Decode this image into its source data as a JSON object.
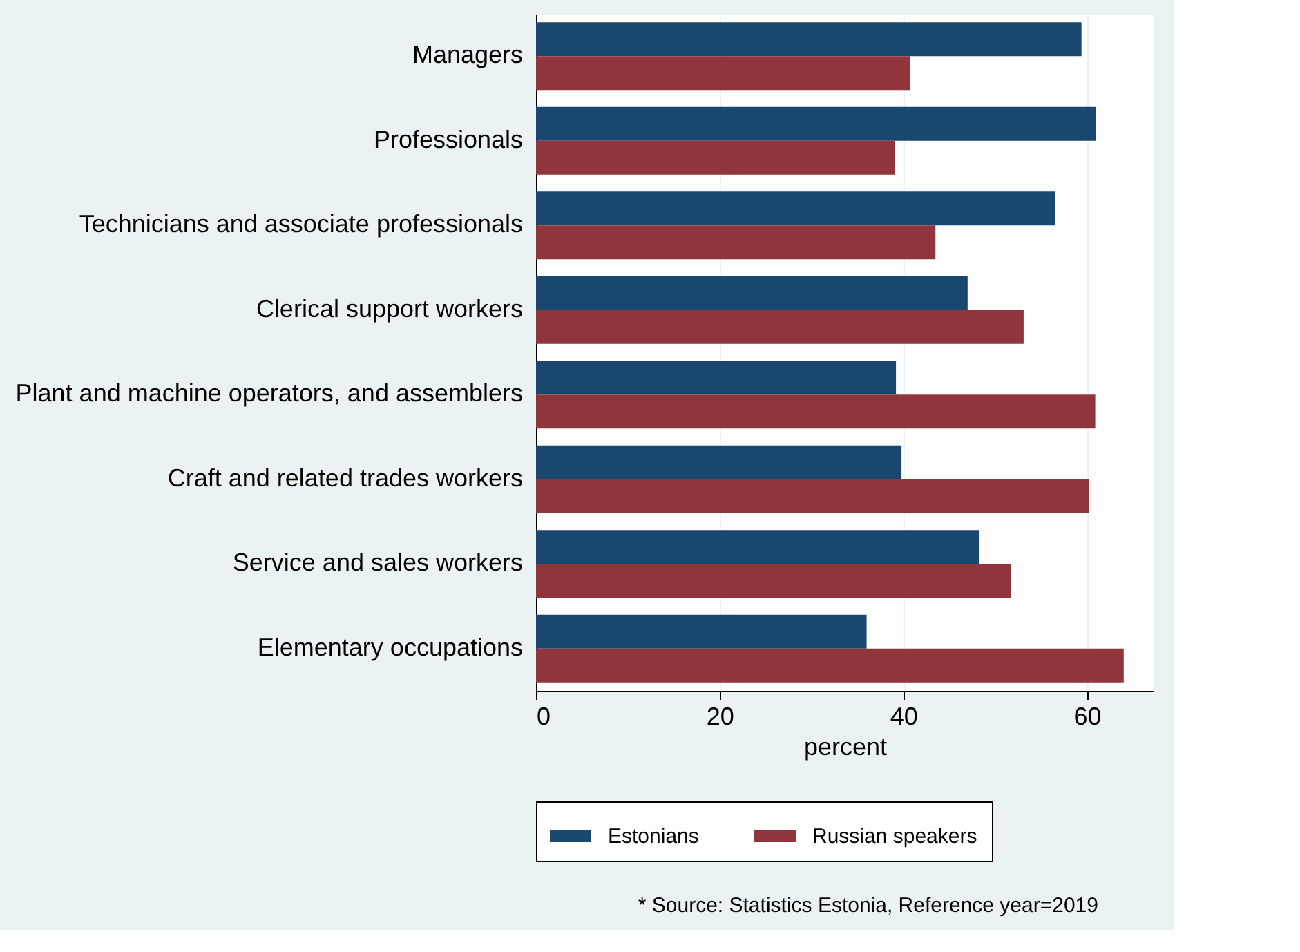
{
  "chart_data": {
    "type": "bar",
    "orientation": "horizontal",
    "categories": [
      "Managers",
      "Professionals",
      "Technicians and associate professionals",
      "Clerical support workers",
      "Plant and machine operators, and assemblers",
      "Craft and related trades workers",
      "Service and sales workers",
      "Elementary occupations"
    ],
    "series": [
      {
        "name": "Estonians",
        "color": "#1a476f",
        "values": [
          59.4,
          61.0,
          56.5,
          47.0,
          39.2,
          39.8,
          48.3,
          36.0
        ]
      },
      {
        "name": "Russian speakers",
        "color": "#90353b",
        "values": [
          40.7,
          39.1,
          43.5,
          53.1,
          60.9,
          60.2,
          51.7,
          64.0
        ]
      }
    ],
    "xlabel": "percent",
    "xlim": [
      0,
      67.25
    ],
    "xticks": [
      0,
      20,
      40,
      60
    ],
    "grid": "x",
    "legend": "bottom",
    "annotations": [
      "* Source: Statistics Estonia, Reference year=2019"
    ]
  }
}
